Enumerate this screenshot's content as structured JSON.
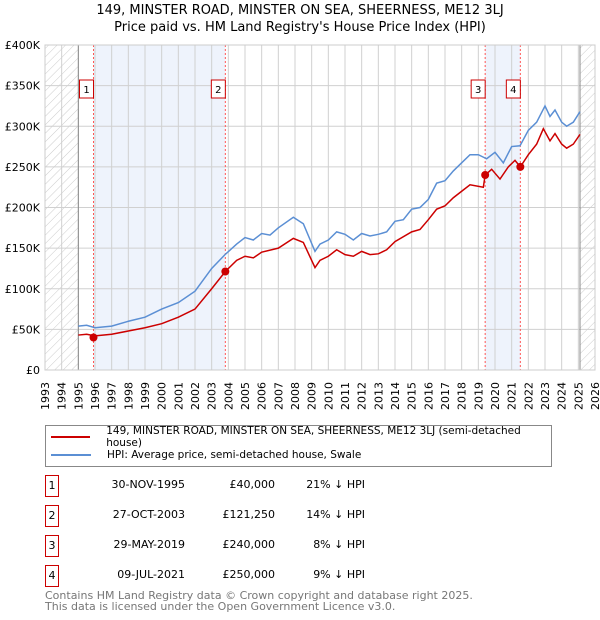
{
  "chart_data": {
    "type": "line",
    "title": "149, MINSTER ROAD, MINSTER ON SEA, SHEERNESS, ME12 3LJ",
    "subtitle": "Price paid vs. HM Land Registry's House Price Index (HPI)",
    "xlim": [
      1993,
      2026
    ],
    "ylim": [
      0,
      400000
    ],
    "x_ticks": [
      "1993",
      "1994",
      "1995",
      "1996",
      "1997",
      "1998",
      "1999",
      "2000",
      "2001",
      "2002",
      "2003",
      "2004",
      "2005",
      "2006",
      "2007",
      "2008",
      "2009",
      "2010",
      "2011",
      "2012",
      "2013",
      "2014",
      "2015",
      "2016",
      "2017",
      "2018",
      "2019",
      "2020",
      "2021",
      "2022",
      "2023",
      "2024",
      "2025",
      "2026"
    ],
    "y_ticks": [
      {
        "v": 0,
        "label": "£0"
      },
      {
        "v": 50000,
        "label": "£50K"
      },
      {
        "v": 100000,
        "label": "£100K"
      },
      {
        "v": 150000,
        "label": "£150K"
      },
      {
        "v": 200000,
        "label": "£200K"
      },
      {
        "v": 250000,
        "label": "£250K"
      },
      {
        "v": 300000,
        "label": "£300K"
      },
      {
        "v": 350000,
        "label": "£350K"
      },
      {
        "v": 400000,
        "label": "£400K"
      }
    ],
    "grid": true,
    "hatched_ranges": [
      [
        1993,
        1995
      ],
      [
        2025.1,
        2026
      ]
    ],
    "shaded_ranges": [
      [
        1995.91,
        2003.82
      ],
      [
        2019.41,
        2021.52
      ]
    ],
    "series": [
      {
        "name": "149, MINSTER ROAD, MINSTER ON SEA, SHEERNESS, ME12 3LJ (semi-detached house)",
        "color": "#cc0000",
        "x": [
          1995,
          1995.5,
          1996,
          1997,
          1998,
          1999,
          2000,
          2001,
          2002,
          2003,
          2003.82,
          2004.5,
          2005,
          2005.5,
          2006,
          2007,
          2007.9,
          2008.5,
          2009.2,
          2009.5,
          2010,
          2010.5,
          2011,
          2011.5,
          2012,
          2012.5,
          2013,
          2013.5,
          2014,
          2015,
          2015.5,
          2016,
          2016.5,
          2017,
          2017.5,
          2018,
          2018.5,
          2019.3,
          2019.41,
          2019.8,
          2020.3,
          2020.8,
          2021.2,
          2021.52,
          2022,
          2022.5,
          2022.9,
          2023.3,
          2023.6,
          2024,
          2024.3,
          2024.7,
          2025.1
        ],
        "y": [
          43000,
          44000,
          42000,
          44000,
          48000,
          52000,
          57000,
          65000,
          75000,
          100000,
          121250,
          135000,
          140000,
          138000,
          145000,
          150000,
          162000,
          157000,
          126000,
          135000,
          140000,
          148000,
          142000,
          140000,
          146000,
          142000,
          143000,
          148000,
          158000,
          170000,
          173000,
          185000,
          198000,
          202000,
          212000,
          220000,
          228000,
          225000,
          240000,
          247000,
          235000,
          250000,
          258000,
          250000,
          265000,
          278000,
          297000,
          282000,
          291000,
          278000,
          273000,
          278000,
          290000
        ]
      },
      {
        "name": "HPI: Average price, semi-detached house, Swale",
        "color": "#5b8fd4",
        "x": [
          1995,
          1995.5,
          1996,
          1997,
          1998,
          1999,
          2000,
          2001,
          2002,
          2003,
          2003.8,
          2004.5,
          2005,
          2005.5,
          2006,
          2006.5,
          2007,
          2007.9,
          2008.5,
          2009.2,
          2009.5,
          2010,
          2010.5,
          2011,
          2011.5,
          2012,
          2012.5,
          2013,
          2013.5,
          2014,
          2014.5,
          2015,
          2015.5,
          2016,
          2016.5,
          2017,
          2017.5,
          2018,
          2018.5,
          2019,
          2019.5,
          2020,
          2020.5,
          2021,
          2021.5,
          2022,
          2022.5,
          2023,
          2023.3,
          2023.6,
          2024,
          2024.3,
          2024.7,
          2025.1
        ],
        "y": [
          54000,
          55000,
          52000,
          54000,
          60000,
          65000,
          75000,
          83000,
          97000,
          125000,
          142000,
          155000,
          163000,
          160000,
          168000,
          166000,
          175000,
          188000,
          180000,
          146000,
          155000,
          160000,
          170000,
          167000,
          160000,
          168000,
          165000,
          167000,
          170000,
          183000,
          185000,
          198000,
          200000,
          210000,
          230000,
          233000,
          245000,
          255000,
          265000,
          265000,
          260000,
          268000,
          255000,
          275000,
          276000,
          295000,
          305000,
          325000,
          312000,
          320000,
          305000,
          300000,
          305000,
          318000
        ]
      }
    ],
    "sales": [
      {
        "n": "1",
        "x": 1995.91,
        "y": 40000,
        "date": "30-NOV-1995",
        "price": "£40,000",
        "hpi": "21% ↓ HPI"
      },
      {
        "n": "2",
        "x": 2003.82,
        "y": 121250,
        "date": "27-OCT-2003",
        "price": "£121,250",
        "hpi": "14% ↓ HPI"
      },
      {
        "n": "3",
        "x": 2019.41,
        "y": 240000,
        "date": "29-MAY-2019",
        "price": "£240,000",
        "hpi": "8% ↓ HPI"
      },
      {
        "n": "4",
        "x": 2021.52,
        "y": 250000,
        "date": "09-JUL-2021",
        "price": "£250,000",
        "hpi": "9% ↓ HPI"
      }
    ]
  },
  "legend": {
    "red": "149, MINSTER ROAD, MINSTER ON SEA, SHEERNESS, ME12 3LJ (semi-detached house)",
    "blue": "HPI: Average price, semi-detached house, Swale"
  },
  "footer": {
    "line1": "Contains HM Land Registry data © Crown copyright and database right 2025.",
    "line2": "This data is licensed under the Open Government Licence v3.0."
  }
}
